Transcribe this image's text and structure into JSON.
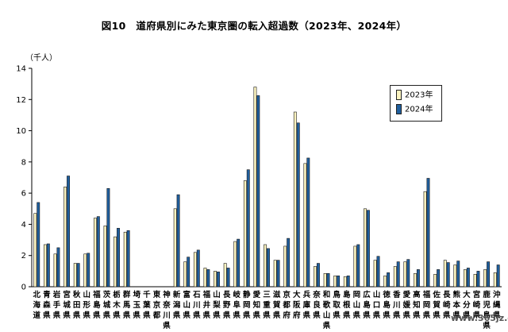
{
  "page": {
    "title": "図10　道府県別にみた東京圏の転入超過数（2023年、2024年）",
    "unit": "（千人）",
    "watermark": "www.365jz.com"
  },
  "chart_data": {
    "type": "bar",
    "title": "図10　道府県別にみた東京圏の転入超過数（2023年、2024年）",
    "ylabel": "（千人）",
    "xlabel": "",
    "ylim": [
      0,
      14
    ],
    "yticks": [
      0,
      2,
      4,
      6,
      8,
      10,
      12,
      14
    ],
    "grid": false,
    "legend_position": "top-right",
    "categories": [
      "北海道県",
      "青森県",
      "岩手県",
      "宮城県",
      "秋田県",
      "山形県",
      "福島県",
      "茨城県",
      "栃木県",
      "群馬県",
      "埼玉県",
      "千葉県",
      "東京都",
      "神奈川県",
      "新潟県",
      "富山県",
      "石川県",
      "福井県",
      "山梨県",
      "長野県",
      "岐阜県",
      "静岡県",
      "愛知県",
      "三重県",
      "滋賀県",
      "京都府",
      "大阪府",
      "兵庫県",
      "奈良県",
      "和歌山県",
      "鳥取県",
      "島根県",
      "岡山県",
      "広島県",
      "山口県",
      "徳島県",
      "香川県",
      "愛媛県",
      "高知県",
      "福岡県",
      "佐賀県",
      "長崎県",
      "熊本県",
      "大分県",
      "宮崎県",
      "鹿児島県",
      "沖縄県"
    ],
    "category_labels": [
      "北海道",
      "青森県",
      "岩手県",
      "宮城県",
      "秋田県",
      "山形県",
      "福島県",
      "茨城県",
      "栃木県",
      "群馬県",
      "埼玉県",
      "千葉県",
      "東京都",
      "神奈川県",
      "新潟県",
      "富山県",
      "石川県",
      "福井県",
      "山梨県",
      "長野県",
      "岐阜県",
      "静岡県",
      "愛知県",
      "三重県",
      "滋賀県",
      "京都府",
      "大阪府",
      "兵庫県",
      "奈良県",
      "和歌山県",
      "鳥取県",
      "島根県",
      "岡山県",
      "広島県",
      "山口県",
      "徳島県",
      "香川県",
      "愛媛県",
      "高知県",
      "福岡県",
      "佐賀県",
      "長崎県",
      "熊本県",
      "大分県",
      "宮崎県",
      "鹿児島県",
      "沖縄県"
    ],
    "series": [
      {
        "name": "2023年",
        "color": "#fbf3c0",
        "values": [
          4.7,
          2.7,
          2.1,
          6.4,
          1.5,
          2.1,
          4.4,
          3.9,
          3.2,
          3.5,
          0,
          0,
          0,
          0,
          5.0,
          1.6,
          2.2,
          1.2,
          1.0,
          1.5,
          2.9,
          6.8,
          12.8,
          2.7,
          1.7,
          2.6,
          11.2,
          7.9,
          1.3,
          0.85,
          0.7,
          0.65,
          2.6,
          5.0,
          1.7,
          0.7,
          1.3,
          1.6,
          0.85,
          6.1,
          0.8,
          1.7,
          1.4,
          1.1,
          0.8,
          1.1,
          0.9
        ]
      },
      {
        "name": "2024年",
        "color": "#1f5f9e",
        "values": [
          5.4,
          2.75,
          2.5,
          7.1,
          1.5,
          2.15,
          4.5,
          6.3,
          3.75,
          3.6,
          0,
          0,
          0,
          0,
          5.9,
          1.9,
          2.35,
          1.1,
          0.95,
          1.2,
          3.05,
          7.5,
          12.25,
          2.45,
          1.7,
          3.1,
          10.5,
          8.25,
          1.5,
          0.85,
          0.7,
          0.7,
          2.7,
          4.9,
          1.95,
          0.9,
          1.6,
          1.75,
          1.1,
          6.95,
          1.1,
          1.55,
          1.65,
          1.2,
          1.0,
          1.6,
          1.4
        ]
      }
    ]
  }
}
